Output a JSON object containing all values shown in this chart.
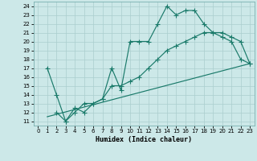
{
  "xlabel": "Humidex (Indice chaleur)",
  "bg_color": "#cce8e8",
  "line_color": "#1a7a6a",
  "grid_color": "#aacece",
  "xlim": [
    -0.5,
    23.5
  ],
  "ylim": [
    10.5,
    24.5
  ],
  "xticks": [
    0,
    1,
    2,
    3,
    4,
    5,
    6,
    7,
    8,
    9,
    10,
    11,
    12,
    13,
    14,
    15,
    16,
    17,
    18,
    19,
    20,
    21,
    22,
    23
  ],
  "yticks": [
    11,
    12,
    13,
    14,
    15,
    16,
    17,
    18,
    19,
    20,
    21,
    22,
    23,
    24
  ],
  "line1_x": [
    1,
    2,
    3,
    4,
    5,
    6,
    7,
    8,
    9,
    10,
    11,
    12,
    13,
    14,
    15,
    16,
    17,
    18,
    19,
    20,
    21,
    22,
    23
  ],
  "line1_y": [
    17,
    14,
    11,
    12,
    13,
    13,
    13.5,
    17,
    14.5,
    20,
    20,
    20,
    22,
    24,
    23,
    23.5,
    23.5,
    22,
    21,
    20.5,
    20,
    18,
    17.5
  ],
  "line2_x": [
    2,
    3,
    4,
    5,
    6,
    7,
    8,
    9,
    10,
    11,
    12,
    13,
    14,
    15,
    16,
    17,
    18,
    19,
    20,
    21,
    22,
    23
  ],
  "line2_y": [
    12,
    11,
    12.5,
    12,
    13,
    13.5,
    15,
    15,
    15.5,
    16,
    17,
    18,
    19,
    19.5,
    20,
    20.5,
    21,
    21,
    21,
    20.5,
    20,
    17.5
  ],
  "line3_x": [
    1,
    23
  ],
  "line3_y": [
    11.5,
    17.5
  ]
}
